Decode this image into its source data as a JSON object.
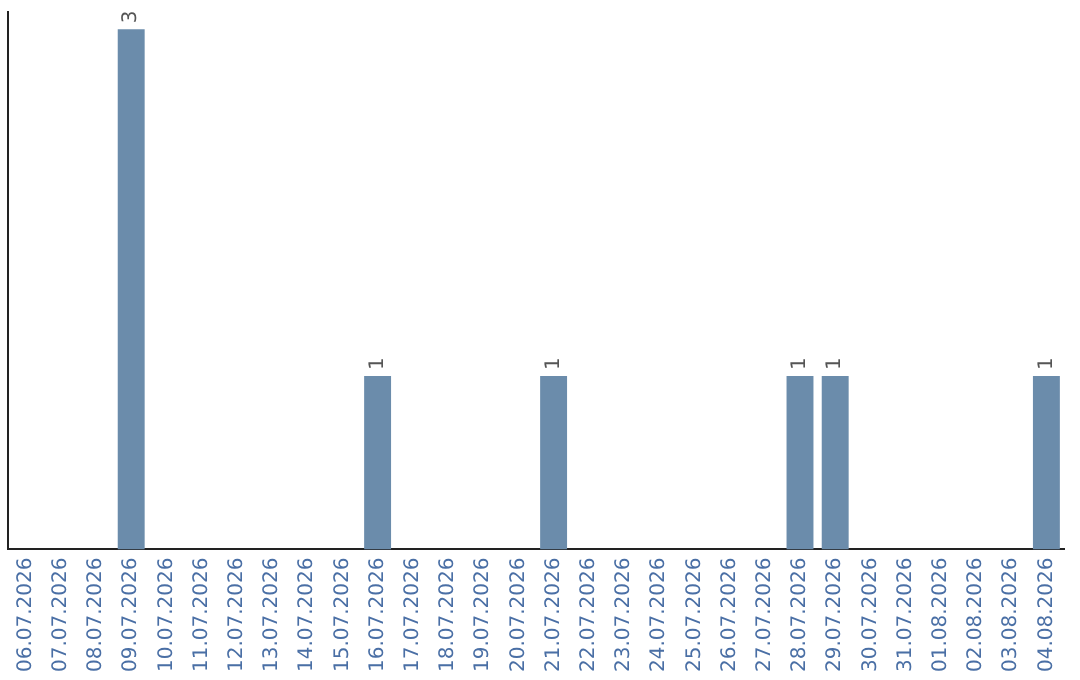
{
  "chart_data": {
    "type": "bar",
    "categories": [
      "06.07.2026",
      "07.07.2026",
      "08.07.2026",
      "09.07.2026",
      "10.07.2026",
      "11.07.2026",
      "12.07.2026",
      "13.07.2026",
      "14.07.2026",
      "15.07.2026",
      "16.07.2026",
      "17.07.2026",
      "18.07.2026",
      "19.07.2026",
      "20.07.2026",
      "21.07.2026",
      "22.07.2026",
      "23.07.2026",
      "24.07.2026",
      "25.07.2026",
      "26.07.2026",
      "27.07.2026",
      "28.07.2026",
      "29.07.2026",
      "30.07.2026",
      "31.07.2026",
      "01.08.2026",
      "02.08.2026",
      "03.08.2026",
      "04.08.2026"
    ],
    "values": [
      null,
      null,
      null,
      3,
      null,
      null,
      null,
      null,
      null,
      null,
      1,
      null,
      null,
      null,
      null,
      1,
      null,
      null,
      null,
      null,
      null,
      null,
      1,
      1,
      null,
      null,
      null,
      null,
      null,
      1
    ],
    "color": "#6b8cab",
    "ylim": [
      0,
      3.1
    ],
    "data_labels": true,
    "tick_labels": "x",
    "grid": false,
    "legend": false
  }
}
